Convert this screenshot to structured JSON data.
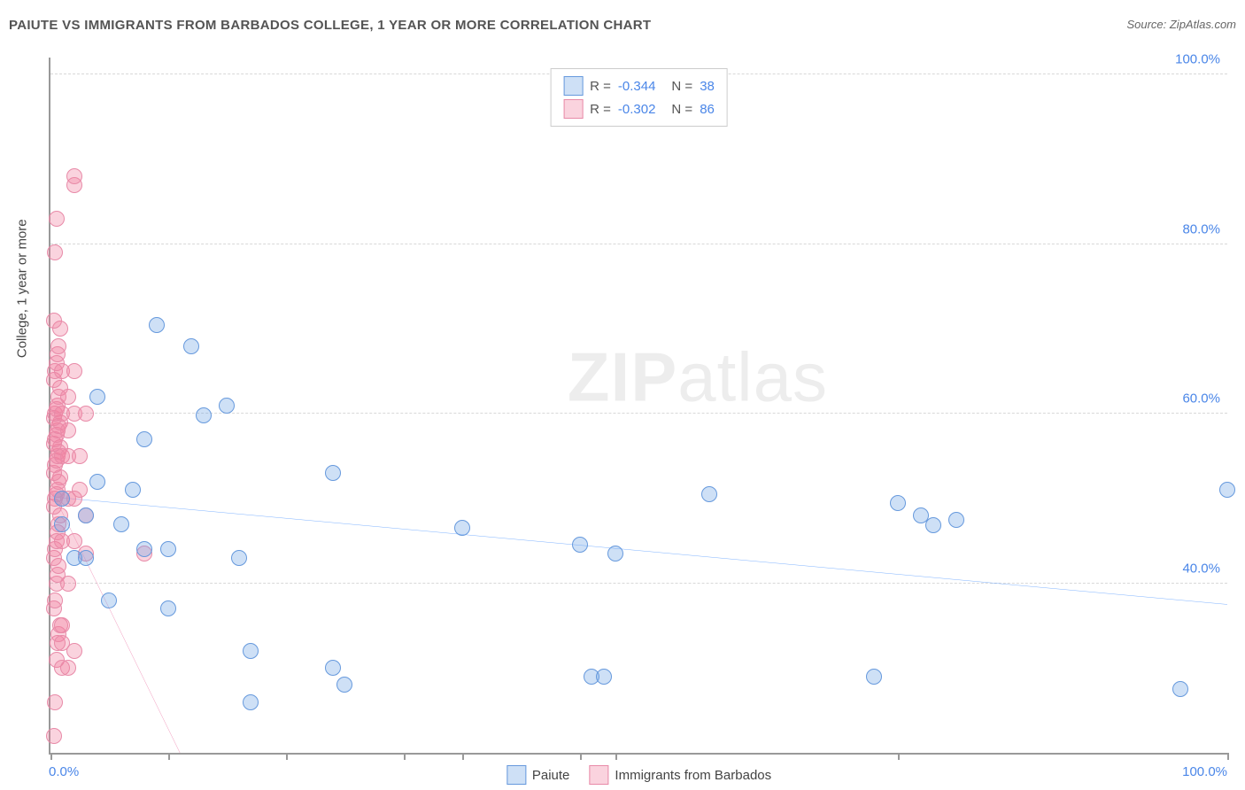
{
  "header": {
    "title": "PAIUTE VS IMMIGRANTS FROM BARBADOS COLLEGE, 1 YEAR OR MORE CORRELATION CHART",
    "source": "Source: ZipAtlas.com"
  },
  "watermark": {
    "bold": "ZIP",
    "light": "atlas"
  },
  "chart": {
    "type": "scatter",
    "y_axis_label": "College, 1 year or more",
    "xlim": [
      0,
      100
    ],
    "ylim": [
      20,
      102
    ],
    "x_ticks": [
      0,
      10,
      20,
      30,
      35,
      45,
      48,
      72,
      100
    ],
    "x_tick_labels": {
      "0": "0.0%",
      "100": "100.0%"
    },
    "y_gridlines": [
      40,
      60,
      80,
      100
    ],
    "y_tick_labels": {
      "40": "40.0%",
      "60": "60.0%",
      "80": "80.0%",
      "100": "100.0%"
    },
    "background_color": "#ffffff",
    "grid_color": "#d8d8d8",
    "axis_color": "#999999",
    "label_color": "#4a86e8",
    "marker_radius": 8,
    "series": [
      {
        "id": "paiute",
        "label": "Paiute",
        "fill": "rgba(115,165,230,0.35)",
        "stroke": "#6699dd",
        "trend_color": "#2a7fff",
        "trend_width": 2.5,
        "R": "-0.344",
        "N": "38",
        "trend": {
          "x1": 0,
          "y1": 50.2,
          "x2": 100,
          "y2": 37.5
        },
        "points": [
          [
            1,
            50
          ],
          [
            1,
            47
          ],
          [
            2,
            43
          ],
          [
            3,
            43
          ],
          [
            3,
            48
          ],
          [
            4,
            52
          ],
          [
            4,
            62
          ],
          [
            5,
            38
          ],
          [
            6,
            47
          ],
          [
            7,
            51
          ],
          [
            8,
            44
          ],
          [
            8,
            57
          ],
          [
            9,
            70.5
          ],
          [
            10,
            37
          ],
          [
            10,
            44
          ],
          [
            12,
            68
          ],
          [
            13,
            59.8
          ],
          [
            15,
            61
          ],
          [
            16,
            43
          ],
          [
            17,
            32
          ],
          [
            17,
            26
          ],
          [
            24,
            30
          ],
          [
            24,
            53
          ],
          [
            25,
            28
          ],
          [
            35,
            46.5
          ],
          [
            45,
            44.5
          ],
          [
            46,
            29
          ],
          [
            47,
            29
          ],
          [
            48,
            43.5
          ],
          [
            56,
            50.5
          ],
          [
            70,
            29
          ],
          [
            72,
            49.5
          ],
          [
            74,
            48
          ],
          [
            75,
            46.8
          ],
          [
            77,
            47.5
          ],
          [
            96,
            27.5
          ],
          [
            100,
            51
          ]
        ]
      },
      {
        "id": "barbados",
        "label": "Immigrants from Barbados",
        "fill": "rgba(240,130,160,0.35)",
        "stroke": "#e88aa8",
        "trend_color": "#e85590",
        "trend_width": 2.5,
        "R": "-0.302",
        "N": "86",
        "trend": {
          "x1": 0,
          "y1": 51.2,
          "x2": 11,
          "y2": 20
        },
        "points": [
          [
            0.3,
            22
          ],
          [
            0.4,
            26
          ],
          [
            0.5,
            31
          ],
          [
            0.6,
            33
          ],
          [
            0.7,
            34
          ],
          [
            0.8,
            35
          ],
          [
            0.3,
            37
          ],
          [
            0.4,
            38
          ],
          [
            0.5,
            40
          ],
          [
            0.6,
            41
          ],
          [
            0.7,
            42
          ],
          [
            0.3,
            43
          ],
          [
            0.4,
            44
          ],
          [
            0.5,
            45
          ],
          [
            0.6,
            46
          ],
          [
            0.7,
            47
          ],
          [
            0.8,
            48
          ],
          [
            0.3,
            49
          ],
          [
            0.4,
            50
          ],
          [
            0.5,
            50.5
          ],
          [
            0.6,
            51
          ],
          [
            0.7,
            52
          ],
          [
            0.8,
            52.5
          ],
          [
            0.3,
            53
          ],
          [
            0.4,
            54
          ],
          [
            0.5,
            54.5
          ],
          [
            0.6,
            55
          ],
          [
            0.7,
            55.5
          ],
          [
            0.8,
            56
          ],
          [
            0.3,
            56.5
          ],
          [
            0.4,
            57
          ],
          [
            0.5,
            57.5
          ],
          [
            0.6,
            58
          ],
          [
            0.7,
            58.5
          ],
          [
            0.8,
            59
          ],
          [
            0.3,
            59.5
          ],
          [
            0.4,
            60
          ],
          [
            0.5,
            60.5
          ],
          [
            0.6,
            61
          ],
          [
            0.7,
            62
          ],
          [
            0.8,
            63
          ],
          [
            0.3,
            64
          ],
          [
            0.4,
            65
          ],
          [
            0.5,
            66
          ],
          [
            0.6,
            67
          ],
          [
            0.7,
            68
          ],
          [
            0.8,
            70
          ],
          [
            0.3,
            71
          ],
          [
            0.4,
            79
          ],
          [
            0.5,
            83
          ],
          [
            1,
            30
          ],
          [
            1,
            33
          ],
          [
            1,
            35
          ],
          [
            1,
            45
          ],
          [
            1,
            50
          ],
          [
            1,
            55
          ],
          [
            1,
            60
          ],
          [
            1,
            65
          ],
          [
            1.5,
            30
          ],
          [
            1.5,
            40
          ],
          [
            1.5,
            50
          ],
          [
            1.5,
            55
          ],
          [
            1.5,
            58
          ],
          [
            1.5,
            62
          ],
          [
            2,
            32
          ],
          [
            2,
            45
          ],
          [
            2,
            50
          ],
          [
            2,
            60
          ],
          [
            2,
            65
          ],
          [
            2,
            87
          ],
          [
            2,
            88
          ],
          [
            2.5,
            51
          ],
          [
            2.5,
            55
          ],
          [
            3,
            43.5
          ],
          [
            3,
            48
          ],
          [
            3,
            60
          ],
          [
            8,
            43.5
          ]
        ]
      }
    ]
  },
  "legend_bottom": [
    {
      "label": "Paiute",
      "fill": "rgba(115,165,230,0.35)",
      "stroke": "#6699dd"
    },
    {
      "label": "Immigrants from Barbados",
      "fill": "rgba(240,130,160,0.35)",
      "stroke": "#e88aa8"
    }
  ]
}
